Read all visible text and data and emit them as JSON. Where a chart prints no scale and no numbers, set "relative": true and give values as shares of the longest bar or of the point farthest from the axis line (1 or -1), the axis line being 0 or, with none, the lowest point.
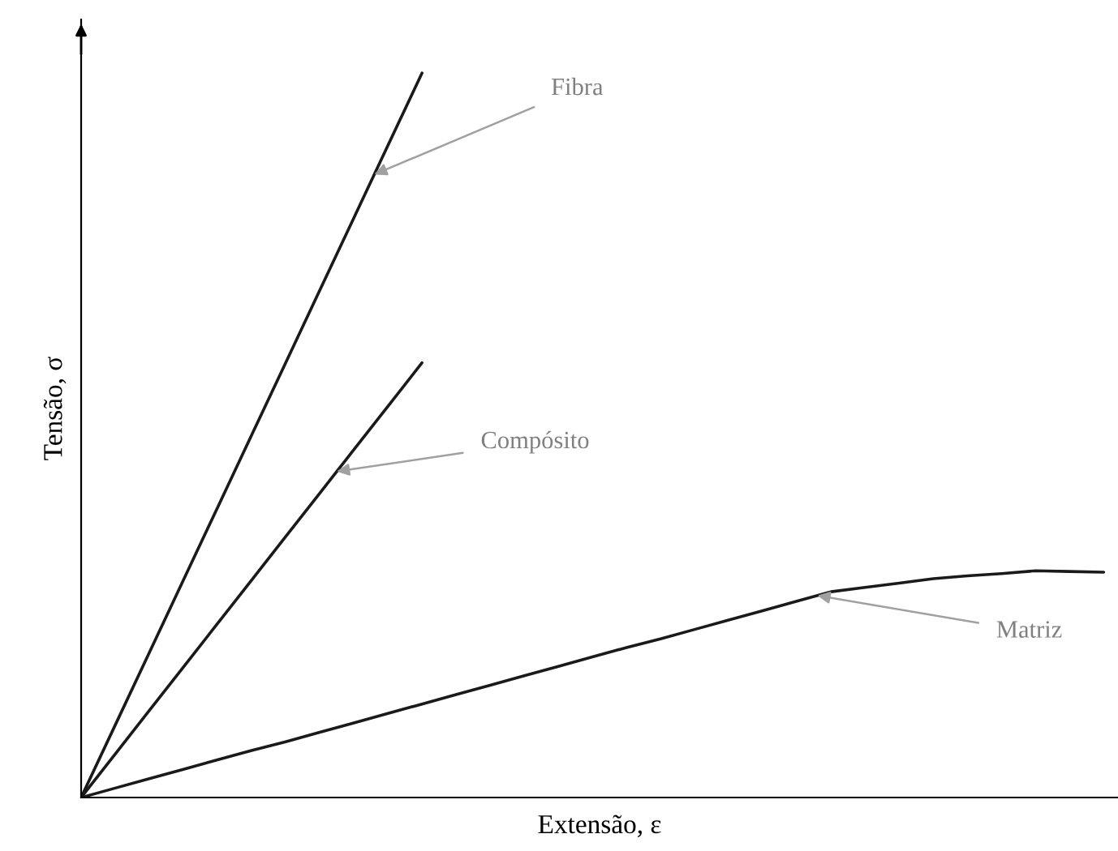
{
  "chart_data": {
    "type": "line",
    "relative": true,
    "xlabel": "Extensão, ε",
    "ylabel": "Tensão, σ",
    "categories": [
      null,
      null,
      null,
      null,
      null,
      null,
      null,
      null,
      null,
      null,
      null,
      null,
      null,
      null,
      null,
      null,
      null,
      null,
      null,
      null,
      null,
      null,
      null,
      null,
      null,
      null,
      null,
      null,
      null,
      null,
      null
    ],
    "series": [
      {
        "color": "#1a1a1a",
        "values": [
          0,
          0.1,
          0.2,
          0.3,
          0.4,
          0.5,
          0.6,
          0.7,
          0.8,
          0.9,
          1,
          null,
          null,
          null,
          null,
          null,
          null,
          null,
          null,
          null,
          null,
          null,
          null,
          null,
          null,
          null,
          null,
          null,
          null,
          null,
          null
        ]
      },
      {
        "color": "#1a1a1a",
        "values": [
          0,
          0.06,
          0.12,
          0.18,
          0.24,
          0.3,
          0.36,
          0.42,
          0.48,
          0.54,
          0.6,
          null,
          null,
          null,
          null,
          null,
          null,
          null,
          null,
          null,
          null,
          null,
          null,
          null,
          null,
          null,
          null,
          null,
          null,
          null,
          null
        ]
      },
      {
        "color": "#1a1a1a",
        "values": [
          0,
          0.013,
          0.026,
          0.039,
          0.052,
          0.065,
          0.077,
          0.09,
          0.103,
          0.116,
          0.129,
          0.142,
          0.155,
          0.168,
          0.181,
          0.194,
          0.207,
          0.219,
          0.232,
          0.245,
          0.258,
          0.271,
          0.284,
          0.29,
          0.296,
          0.302,
          0.306,
          0.309,
          0.313,
          0.312,
          0.311
        ]
      }
    ],
    "annotations": [
      "Fibra",
      "Compósito",
      "Matriz"
    ]
  }
}
